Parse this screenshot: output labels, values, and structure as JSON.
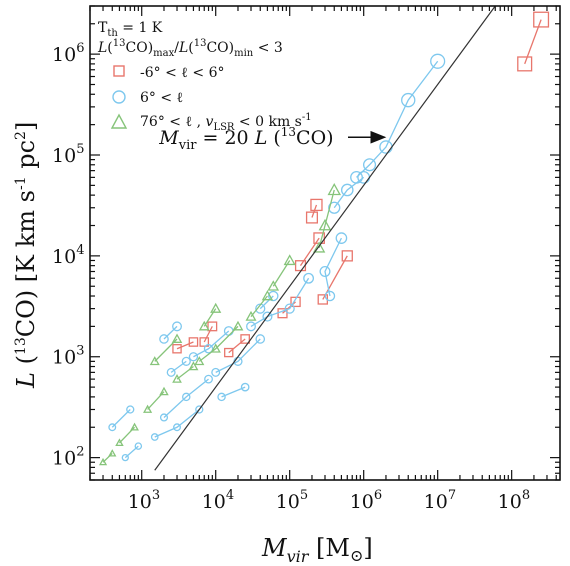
{
  "chart_data": {
    "type": "scatter",
    "x_scale": "log",
    "y_scale": "log",
    "xlim": [
      200,
      450000000
    ],
    "ylim": [
      60,
      3000000
    ],
    "grid": false,
    "x_ticks": [
      {
        "value": 1000,
        "mantissa": "10",
        "exponent": "3"
      },
      {
        "value": 10000,
        "mantissa": "10",
        "exponent": "4"
      },
      {
        "value": 100000,
        "mantissa": "10",
        "exponent": "5"
      },
      {
        "value": 1000000,
        "mantissa": "10",
        "exponent": "6"
      },
      {
        "value": 10000000,
        "mantissa": "10",
        "exponent": "7"
      },
      {
        "value": 100000000,
        "mantissa": "10",
        "exponent": "8"
      }
    ],
    "y_ticks": [
      {
        "value": 100,
        "mantissa": "10",
        "exponent": "2"
      },
      {
        "value": 1000,
        "mantissa": "10",
        "exponent": "3"
      },
      {
        "value": 10000,
        "mantissa": "10",
        "exponent": "4"
      },
      {
        "value": 100000,
        "mantissa": "10",
        "exponent": "5"
      },
      {
        "value": 1000000,
        "mantissa": "10",
        "exponent": "6"
      }
    ],
    "xlabel": {
      "main": "M",
      "sub": "vir",
      "unit_open": " [M",
      "unit_symbol": "⊙",
      "unit_close": "]"
    },
    "ylabel": {
      "main": "L",
      "open": " (",
      "sup": "13",
      "mid": "CO)  [K km s",
      "sup2": "-1",
      "mid2": " pc",
      "sup3": "2",
      "close": "]"
    },
    "legend": {
      "placement": "top-left",
      "header1": {
        "main": "T",
        "sub": "th",
        "rest": " = 1 K"
      },
      "header2": {
        "a": "L",
        "b": "(",
        "c": "13",
        "d": "CO)",
        "e": "max",
        "f": "/",
        "g": "L",
        "h": "(",
        "i": "13",
        "j": "CO)",
        "k": "min",
        "l": "  < 3"
      },
      "entries": [
        {
          "marker": "square",
          "color": "#e8766c",
          "label": "-6° < ℓ < 6°"
        },
        {
          "marker": "circle",
          "color": "#7ec8ee",
          "label": "6° < ℓ"
        },
        {
          "marker": "triangle",
          "color": "#86c47a",
          "label": "76° < ℓ  ,  ",
          "extra_main": "v",
          "extra_sub": "LSR",
          "extra_rest": " < 0 km s",
          "extra_sup": "-1"
        }
      ]
    },
    "annotation": {
      "main": "M",
      "sub": "vir",
      "mid": " = 20 ",
      "l": "L",
      "open": " (",
      "sup": "13",
      "close": "CO)",
      "arrow_to": [
        1500000,
        150000
      ],
      "text_at": [
        6000,
        150000
      ]
    },
    "fit_line": {
      "label": "M_vir = 20 L(13CO)",
      "slope": 1.0,
      "intercept_factor": 0.05,
      "color": "#333333"
    },
    "series": [
      {
        "name": "-6° < ℓ < 6°",
        "marker": "square",
        "color": "#e8766c",
        "tracks": [
          [
            [
              150000000,
              800000
            ],
            [
              250000000,
              2200000
            ]
          ],
          [
            [
              600000,
              10000
            ],
            [
              280000,
              3700
            ]
          ],
          [
            [
              200000,
              24000
            ],
            [
              230000,
              32000
            ]
          ],
          [
            [
              140000,
              8000
            ],
            [
              250000,
              15000
            ]
          ],
          [
            [
              80000,
              2700
            ],
            [
              120000,
              3500
            ]
          ],
          [
            [
              15000,
              1100
            ],
            [
              25000,
              1500
            ]
          ],
          [
            [
              7000,
              1400
            ],
            [
              9000,
              2000
            ]
          ],
          [
            [
              3000,
              1200
            ],
            [
              5000,
              1400
            ]
          ]
        ]
      },
      {
        "name": "6° < ℓ",
        "marker": "circle",
        "color": "#7ec8ee",
        "tracks": [
          [
            [
              10000000,
              850000
            ],
            [
              4000000,
              350000
            ],
            [
              2000000,
              120000
            ],
            [
              1200000,
              80000
            ],
            [
              800000,
              60000
            ]
          ],
          [
            [
              1000000,
              60000
            ],
            [
              600000,
              45000
            ],
            [
              400000,
              30000
            ]
          ],
          [
            [
              500000,
              15000
            ],
            [
              300000,
              7000
            ],
            [
              350000,
              4000
            ]
          ],
          [
            [
              180000,
              6000
            ],
            [
              100000,
              3000
            ],
            [
              50000,
              2500
            ],
            [
              30000,
              2000
            ]
          ],
          [
            [
              40000,
              1500
            ],
            [
              20000,
              900
            ],
            [
              10000,
              700
            ]
          ],
          [
            [
              8000,
              600
            ],
            [
              4000,
              400
            ],
            [
              2000,
              250
            ]
          ],
          [
            [
              6000,
              300
            ],
            [
              3000,
              200
            ],
            [
              1500,
              160
            ]
          ],
          [
            [
              4000,
              900
            ],
            [
              2500,
              700
            ]
          ],
          [
            [
              15000,
              1800
            ],
            [
              8000,
              1200
            ],
            [
              5000,
              1000
            ]
          ],
          [
            [
              60000,
              4000
            ],
            [
              40000,
              3000
            ]
          ],
          [
            [
              25000,
              500
            ],
            [
              12000,
              400
            ]
          ],
          [
            [
              900,
              130
            ],
            [
              600,
              100
            ]
          ],
          [
            [
              700,
              300
            ],
            [
              400,
              200
            ]
          ],
          [
            [
              3000,
              2000
            ],
            [
              2000,
              1500
            ]
          ]
        ]
      },
      {
        "name": "76° < ℓ , v_LSR < 0 km s-1",
        "marker": "triangle",
        "color": "#86c47a",
        "tracks": [
          [
            [
              400000,
              45000
            ],
            [
              300000,
              20000
            ],
            [
              250000,
              12000
            ]
          ],
          [
            [
              100000,
              9000
            ],
            [
              60000,
              5000
            ]
          ],
          [
            [
              50000,
              4000
            ],
            [
              30000,
              2500
            ]
          ],
          [
            [
              20000,
              2000
            ],
            [
              10000,
              1200
            ],
            [
              6000,
              900
            ]
          ],
          [
            [
              5000,
              800
            ],
            [
              3000,
              600
            ]
          ],
          [
            [
              2000,
              450
            ],
            [
              1200,
              300
            ]
          ],
          [
            [
              800,
              200
            ],
            [
              500,
              140
            ]
          ],
          [
            [
              400,
              110
            ],
            [
              300,
              90
            ]
          ],
          [
            [
              3000,
              1500
            ],
            [
              1500,
              900
            ]
          ],
          [
            [
              10000,
              3000
            ],
            [
              7000,
              2000
            ]
          ]
        ]
      }
    ]
  }
}
